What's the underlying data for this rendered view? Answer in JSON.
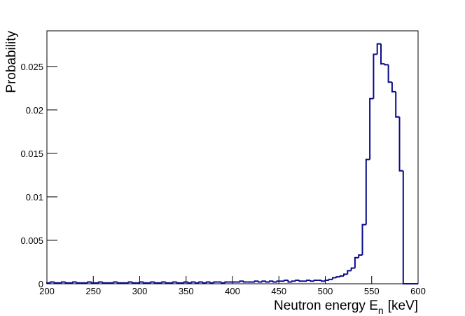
{
  "chart_data": {
    "type": "histogram",
    "ylabel": "Probability",
    "xlabel": {
      "main": "Neutron energy E",
      "sub": "n",
      "unit": "[keV]"
    },
    "color": "#0a0a8c",
    "bins": [
      200,
      204,
      208,
      212,
      216,
      220,
      224,
      228,
      232,
      236,
      240,
      244,
      248,
      252,
      256,
      260,
      264,
      268,
      272,
      276,
      280,
      284,
      288,
      292,
      296,
      300,
      304,
      308,
      312,
      316,
      320,
      324,
      328,
      332,
      336,
      340,
      344,
      348,
      352,
      356,
      360,
      364,
      368,
      372,
      376,
      380,
      384,
      388,
      392,
      396,
      400,
      404,
      408,
      412,
      416,
      420,
      424,
      428,
      432,
      436,
      440,
      444,
      448,
      452,
      456,
      460,
      464,
      468,
      472,
      476,
      480,
      484,
      488,
      492,
      496,
      500,
      504,
      508,
      512,
      516,
      520,
      524,
      528,
      532,
      536,
      540,
      544,
      548,
      552,
      556,
      560,
      564,
      568,
      572,
      576,
      580,
      584,
      588,
      592,
      596,
      600
    ],
    "values": [
      0.0001,
      0.0002,
      0.0001,
      0.0001,
      0.0002,
      0.0001,
      0.0001,
      0.0002,
      0.0001,
      0.0001,
      0.0001,
      0.0002,
      0.0001,
      0.0001,
      0.0002,
      0.0001,
      0.0001,
      0.0001,
      0.0002,
      0.0001,
      0.0001,
      0.0001,
      0.0002,
      0.0001,
      0.0001,
      0.0002,
      0.0001,
      0.0001,
      0.0002,
      0.0001,
      0.0001,
      0.0002,
      0.0001,
      0.0001,
      0.0002,
      0.0001,
      0.0001,
      0.0002,
      0.0001,
      0.0002,
      0.0001,
      0.0002,
      0.0001,
      0.0002,
      0.0001,
      0.0002,
      0.0002,
      0.0001,
      0.0002,
      0.0002,
      0.0002,
      0.0002,
      0.0003,
      0.0002,
      0.0002,
      0.0002,
      0.0003,
      0.0002,
      0.0003,
      0.0002,
      0.0003,
      0.0002,
      0.0003,
      0.0003,
      0.0004,
      0.0002,
      0.0003,
      0.0004,
      0.0003,
      0.0003,
      0.0004,
      0.0003,
      0.0004,
      0.0004,
      0.0003,
      0.0004,
      0.0005,
      0.0007,
      0.0008,
      0.0009,
      0.0011,
      0.0015,
      0.0018,
      0.003,
      0.0033,
      0.0068,
      0.0143,
      0.0213,
      0.0264,
      0.0276,
      0.0253,
      0.0252,
      0.0232,
      0.0221,
      0.0192,
      0.013,
      0,
      0,
      0,
      0
    ],
    "xlim": [
      200,
      600
    ],
    "ylim": [
      0,
      0.0291
    ],
    "xticks": [
      200,
      250,
      300,
      350,
      400,
      450,
      500,
      550,
      600
    ],
    "yticks": [
      0,
      0.005,
      0.01,
      0.015,
      0.02,
      0.025
    ]
  }
}
